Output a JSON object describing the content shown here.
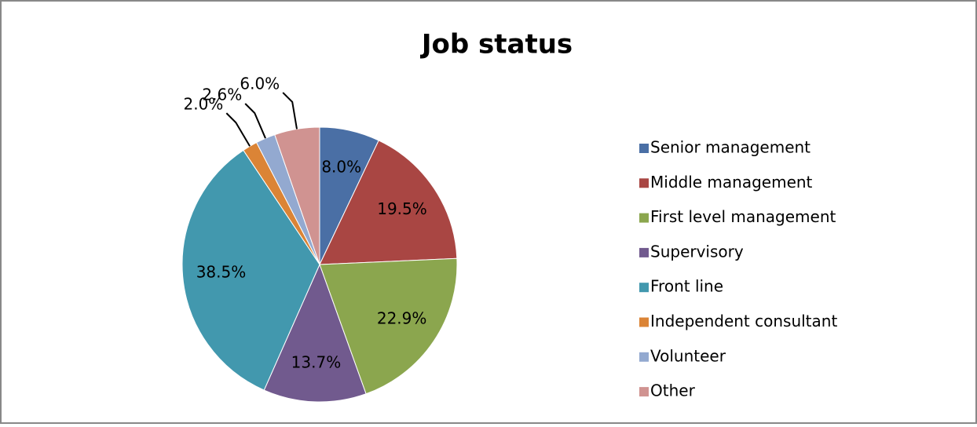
{
  "chart_data": {
    "type": "pie",
    "title": "Job status",
    "categories": [
      "Senior management",
      "Middle management",
      "First level management",
      "Supervisory",
      "Front line",
      "Independent consultant",
      "Volunteer",
      "Other"
    ],
    "values": [
      8.0,
      19.5,
      22.9,
      13.7,
      38.5,
      2.0,
      2.6,
      6.0
    ],
    "value_labels": [
      "8.0%",
      "19.5%",
      "22.9%",
      "13.7%",
      "38.5%",
      "2.0%",
      "2.6%",
      "6.0%"
    ],
    "colors": [
      "#4a6fa5",
      "#a94643",
      "#8ba64e",
      "#715a8e",
      "#4298ae",
      "#db8436",
      "#93a9d0",
      "#d09391"
    ],
    "legend": "right"
  }
}
